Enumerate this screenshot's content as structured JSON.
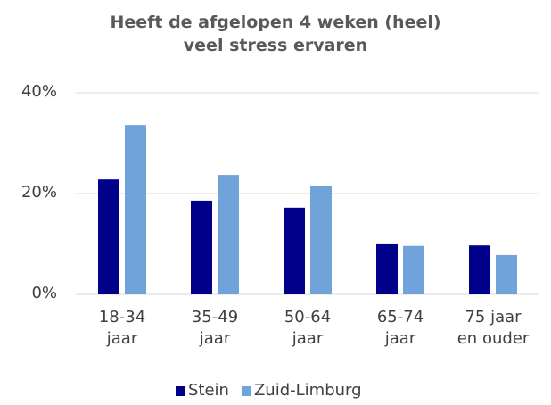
{
  "chart_data": {
    "type": "bar",
    "title": "Heeft de afgelopen 4 weken (heel)\nveel stress ervaren",
    "categories": [
      "18-34\njaar",
      "35-49\njaar",
      "50-64\njaar",
      "65-74\njaar",
      "75 jaar\nen ouder"
    ],
    "series": [
      {
        "name": "Stein",
        "color": "#00008b",
        "values": [
          22.8,
          18.6,
          17.2,
          10.1,
          9.7
        ]
      },
      {
        "name": "Zuid-Limburg",
        "color": "#6fa3d9",
        "values": [
          33.6,
          23.7,
          21.6,
          9.6,
          7.8
        ]
      }
    ],
    "ylim": [
      0,
      40
    ],
    "yticks": [
      {
        "value": 0,
        "label": "0%"
      },
      {
        "value": 20,
        "label": "20%"
      },
      {
        "value": 40,
        "label": "40%"
      }
    ],
    "grid": true,
    "legend": "bottom"
  }
}
